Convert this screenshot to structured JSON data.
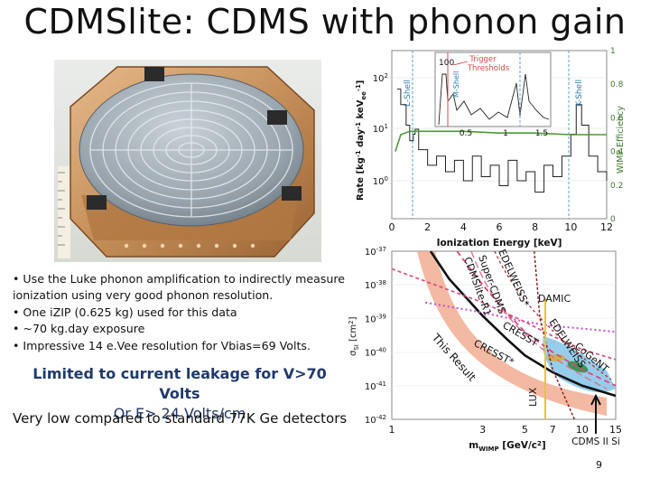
{
  "slide": {
    "title": "CDMSlite: CDMS with phonon gain",
    "bullets": [
      "• Use the Luke phonon amplification to indirectly measure ionization using very good phonon resolution.",
      "• One iZIP (0.625 kg) used for this data",
      "• ~70 kg.day exposure",
      "• Impressive 14 e.Vee resolution for Vbias=69 Volts."
    ],
    "limit_line1": "Limited to current leakage for V>70 Volts",
    "limit_line2": "Or E> 24 Volts/cm",
    "comparison": "Very low compared to standard 77K Ge detectors",
    "page_number": "9"
  },
  "chart_data": [
    {
      "type": "line",
      "xlabel": "Ionization Energy [keV]",
      "ylabel": "Rate [kg-1 day-1 keVee-1]",
      "y2label": "WIMP Efficiency",
      "xticks": [
        "0",
        "2",
        "4",
        "6",
        "8",
        "10",
        "12"
      ],
      "yticks": [
        "10^0",
        "10^1",
        "10^2"
      ],
      "y2ticks": [
        "0",
        "0.2",
        "0.4",
        "0.6",
        "0.8",
        "1"
      ],
      "xlim": [
        0,
        12
      ],
      "annotations": [
        "L-Shell",
        "K-Shell"
      ],
      "inset": {
        "xticks": [
          "0.5",
          "1",
          "1.5"
        ],
        "ytick": "100",
        "annotations": [
          "M-Shell",
          "Trigger Thresholds"
        ]
      },
      "series": [
        {
          "name": "Rate",
          "x": [
            0.3,
            0.5,
            0.8,
            1.0,
            1.2,
            1.3,
            1.5,
            2,
            2.5,
            3,
            3.5,
            4,
            4.5,
            5,
            5.5,
            6,
            6.5,
            7,
            7.5,
            8,
            8.5,
            9,
            9.5,
            10,
            10.3,
            10.6,
            11,
            11.5,
            12
          ],
          "y": [
            60,
            30,
            12,
            6,
            8,
            10,
            4,
            2,
            3,
            1.5,
            2.5,
            1,
            3,
            1.2,
            2,
            0.8,
            2.5,
            1,
            1.5,
            0.6,
            2,
            1.2,
            3,
            8,
            30,
            12,
            3,
            1.5,
            1
          ]
        },
        {
          "name": "WIMP Efficiency",
          "x": [
            0.2,
            0.5,
            1,
            2,
            4,
            6,
            8,
            10,
            12
          ],
          "y": [
            0.4,
            0.5,
            0.52,
            0.52,
            0.52,
            0.51,
            0.51,
            0.5,
            0.5
          ]
        }
      ]
    },
    {
      "type": "line",
      "xlabel": "mWIMP [GeV/c2]",
      "ylabel": "σSI [cm2]",
      "xticks": [
        "1",
        "3",
        "5",
        "7",
        "10",
        "15"
      ],
      "yticks": [
        "10^-42",
        "10^-41",
        "10^-40",
        "10^-39",
        "10^-38",
        "10^-37"
      ],
      "xlim": [
        1,
        15
      ],
      "ylim": [
        "1e-42",
        "1e-37"
      ],
      "annotations": [
        "This Result",
        "CDMSlite-R1",
        "Super-CDMS",
        "EDELWEISS*",
        "DAMIC",
        "CRESST",
        "CRESST*",
        "EDELWEISS",
        "CoGeNT",
        "LUX",
        "CDMS II Si"
      ],
      "series": [
        {
          "name": "This Result",
          "x": [
            1.6,
            2,
            3,
            4,
            5,
            7,
            10,
            15
          ],
          "y": [
            1e-37,
            1.5e-38,
            1.2e-39,
            2.5e-40,
            8e-41,
            2.5e-41,
            1e-41,
            5e-42
          ]
        },
        {
          "name": "CDMSlite-R1",
          "x": [
            2.2,
            3,
            4,
            5,
            7,
            10,
            15
          ],
          "y": [
            1e-37,
            1e-38,
            1.5e-39,
            4e-40,
            1e-40,
            3e-41,
            1e-41
          ]
        },
        {
          "name": "DAMIC",
          "x": [
            1.5,
            3,
            5,
            7,
            10,
            15
          ],
          "y": [
            3e-39,
            1.5e-39,
            8e-40,
            6e-40,
            5e-40,
            4e-40
          ]
        },
        {
          "name": "CRESST",
          "x": [
            1,
            3,
            5,
            7,
            10,
            15
          ],
          "y": [
            3e-38,
            3e-39,
            8e-40,
            3e-40,
            1.2e-40,
            6e-41
          ]
        },
        {
          "name": "LUX",
          "x": [
            5.6,
            6,
            7,
            10,
            15
          ],
          "y": [
            1e-37,
            1e-39,
            3e-41,
            3e-43,
            5e-44
          ]
        }
      ]
    }
  ],
  "icons": {
    "detector_photo": "germanium-detector-photo",
    "pointer": "arrow-icon"
  }
}
